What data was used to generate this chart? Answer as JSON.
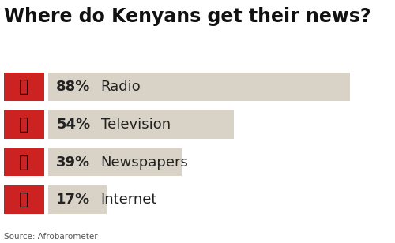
{
  "title": "Where do Kenyans get their news?",
  "categories": [
    "Radio",
    "Television",
    "Newspapers",
    "Internet"
  ],
  "values": [
    88,
    54,
    39,
    17
  ],
  "percentages": [
    "88%",
    "54%",
    "39%",
    "17%"
  ],
  "max_value": 100,
  "bar_color": "#d9d3c7",
  "icon_bg_color": "#cc2222",
  "title_fontsize": 17,
  "label_fontsize": 13,
  "pct_fontsize": 13,
  "source_text": "Source: Afrobarometer",
  "source_fontsize": 7.5,
  "background_color": "#ffffff",
  "text_color": "#222222",
  "source_color": "#555555"
}
